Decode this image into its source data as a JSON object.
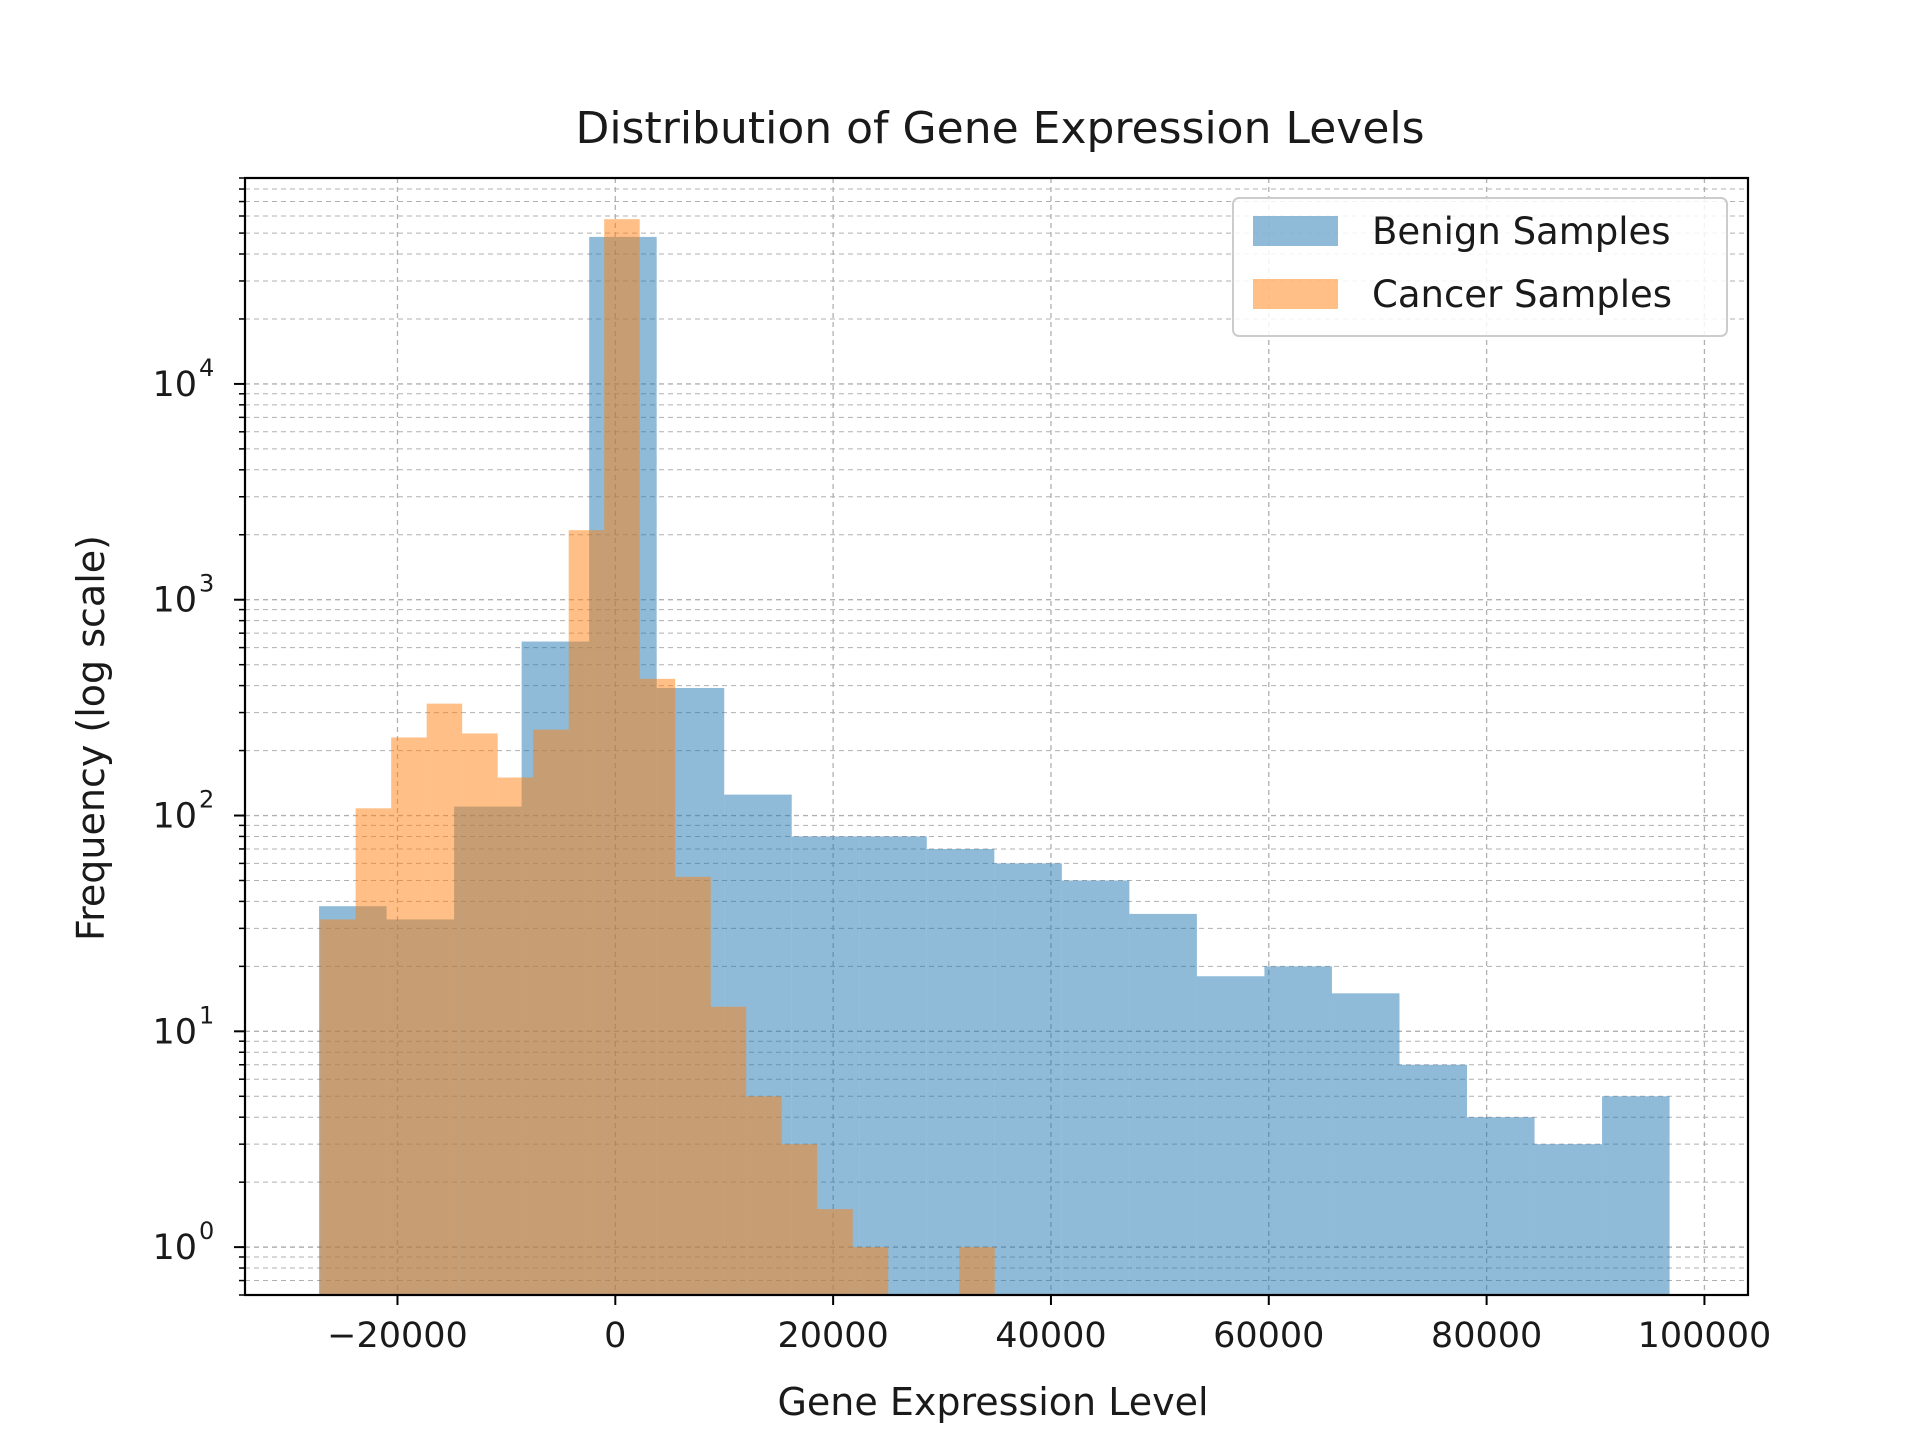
{
  "chart_data": {
    "type": "bar",
    "title": "Distribution of Gene Expression Levels",
    "xlabel": "Gene Expression Level",
    "ylabel": "Frequency (log scale)",
    "yscale": "log",
    "xlim": [
      -34000,
      104000
    ],
    "ylim": [
      0.6,
      90000
    ],
    "grid": true,
    "legend_position": "top-right",
    "x_ticks": [
      {
        "value": -20000,
        "label": "−20000"
      },
      {
        "value": 0,
        "label": "0"
      },
      {
        "value": 20000,
        "label": "20000"
      },
      {
        "value": 40000,
        "label": "40000"
      },
      {
        "value": 60000,
        "label": "60000"
      },
      {
        "value": 80000,
        "label": "80000"
      },
      {
        "value": 100000,
        "label": "100000"
      }
    ],
    "y_ticks": [
      {
        "value": 1,
        "base": "10",
        "exp": "0"
      },
      {
        "value": 10,
        "base": "10",
        "exp": "1"
      },
      {
        "value": 100,
        "base": "10",
        "exp": "2"
      },
      {
        "value": 1000,
        "base": "10",
        "exp": "3"
      },
      {
        "value": 10000,
        "base": "10",
        "exp": "4"
      }
    ],
    "series": [
      {
        "name": "Benign Samples",
        "color": "#1f77b4",
        "opacity": 0.5,
        "bin_edges": [
          -27200,
          -21000,
          -14800,
          -8600,
          -2400,
          3800,
          10000,
          16200,
          22400,
          28600,
          34800,
          41000,
          47200,
          53400,
          59600,
          65800,
          72000,
          78200,
          84400,
          90600,
          96800
        ],
        "counts": [
          38,
          33,
          110,
          640,
          48000,
          390,
          125,
          80,
          80,
          70,
          60,
          50,
          35,
          18,
          20,
          15,
          7,
          4,
          3,
          5
        ]
      },
      {
        "name": "Cancer Samples",
        "color": "#ff7f0e",
        "opacity": 0.5,
        "bin_edges": [
          -27100,
          -23840,
          -20580,
          -17320,
          -14060,
          -10800,
          -7540,
          -4280,
          -1020,
          2240,
          5500,
          8760,
          12020,
          15280,
          18540,
          21800,
          25060,
          28320,
          31580,
          34840,
          38100
        ],
        "counts": [
          33,
          108,
          230,
          330,
          240,
          150,
          250,
          2100,
          58000,
          430,
          52,
          13,
          5,
          3,
          1.5,
          1,
          0,
          0,
          1,
          0
        ]
      }
    ]
  }
}
